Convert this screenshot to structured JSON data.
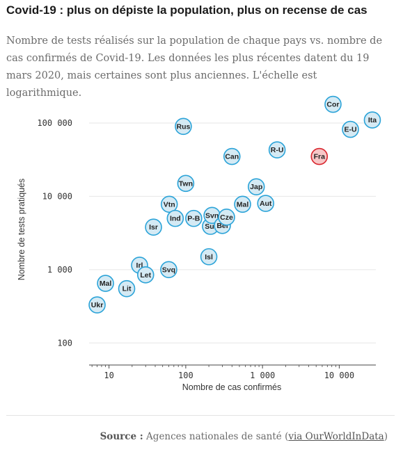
{
  "header": {
    "title": "Covid-19 : plus on dépiste la population, plus on recense de cas",
    "subtitle": "Nombre de tests réalisés sur la population de chaque pays vs. nombre de cas confirmés de Covid-19. Les données les plus récentes datent du 19 mars 2020, mais certaines sont plus anciennes. L'échelle est logarithmique."
  },
  "footer": {
    "source_label": "Source :",
    "source_text": "Agences nationales de santé (",
    "source_link": "via OurWorldInData",
    "source_close": ")"
  },
  "colors": {
    "bubble_fill": "#d5eaf4",
    "bubble_stroke": "#2ba3d8",
    "highlight_fill": "#f7c7c7",
    "highlight_stroke": "#d9262e",
    "grid": "#e6e6e6",
    "axis": "#444444",
    "text": "#333333"
  },
  "chart_data": {
    "type": "scatter",
    "xlabel": "Nombre de cas confirmés",
    "ylabel": "Nombre de tests pratiqués",
    "x_scale": "log",
    "y_scale": "log",
    "xlim": [
      5.5,
      30000
    ],
    "ylim": [
      50,
      250000
    ],
    "grid": "horizontal",
    "x_ticks": [
      {
        "value": 10,
        "label": "10"
      },
      {
        "value": 100,
        "label": "100"
      },
      {
        "value": 1000,
        "label": "1 000"
      },
      {
        "value": 10000,
        "label": "10 000"
      }
    ],
    "y_ticks": [
      {
        "value": 100,
        "label": "100"
      },
      {
        "value": 1000,
        "label": "1 000"
      },
      {
        "value": 10000,
        "label": "10 000"
      },
      {
        "value": 100000,
        "label": "100 000"
      }
    ],
    "points": [
      {
        "label": "Ukr",
        "x": 7,
        "y": 330
      },
      {
        "label": "Mal",
        "x": 9,
        "y": 650
      },
      {
        "label": "Lit",
        "x": 17,
        "y": 550
      },
      {
        "label": "Irl",
        "x": 25,
        "y": 1150
      },
      {
        "label": "Let",
        "x": 30,
        "y": 850
      },
      {
        "label": "Isr",
        "x": 38,
        "y": 3800
      },
      {
        "label": "Svq",
        "x": 60,
        "y": 1000
      },
      {
        "label": "Vtn",
        "x": 61,
        "y": 7800
      },
      {
        "label": "Ind",
        "x": 73,
        "y": 5000
      },
      {
        "label": "Rus",
        "x": 93,
        "y": 90000
      },
      {
        "label": "Twn",
        "x": 100,
        "y": 15000
      },
      {
        "label": "P-B",
        "x": 127,
        "y": 5000
      },
      {
        "label": "Isl",
        "x": 200,
        "y": 1500
      },
      {
        "label": "Sui",
        "x": 210,
        "y": 3900
      },
      {
        "label": "Svn",
        "x": 220,
        "y": 5500
      },
      {
        "label": "Bel",
        "x": 300,
        "y": 4000
      },
      {
        "label": "Cze",
        "x": 340,
        "y": 5200
      },
      {
        "label": "Can",
        "x": 400,
        "y": 35000
      },
      {
        "label": "Mal",
        "x": 550,
        "y": 7800
      },
      {
        "label": "Jap",
        "x": 830,
        "y": 13500
      },
      {
        "label": "Aut",
        "x": 1100,
        "y": 8000
      },
      {
        "label": "R-U",
        "x": 1550,
        "y": 43000
      },
      {
        "label": "Fra",
        "x": 5500,
        "y": 35000,
        "highlight": true
      },
      {
        "label": "Cor",
        "x": 8300,
        "y": 180000
      },
      {
        "label": "E-U",
        "x": 14000,
        "y": 82000
      },
      {
        "label": "Ita",
        "x": 27000,
        "y": 110000
      }
    ]
  }
}
